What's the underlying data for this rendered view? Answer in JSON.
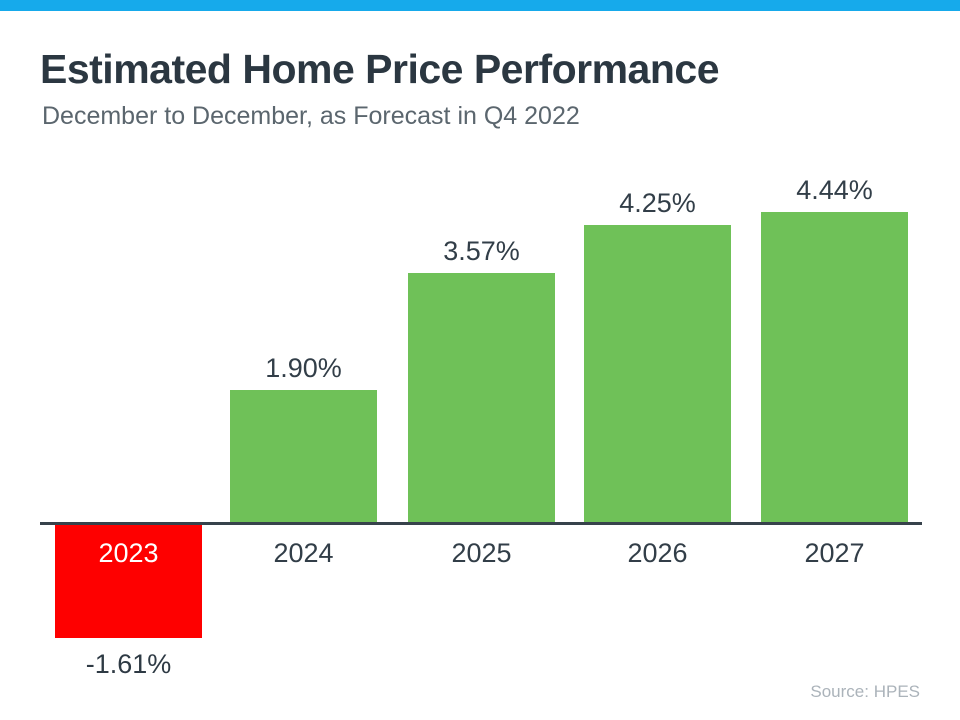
{
  "header": {
    "title": "Estimated Home Price Performance",
    "subtitle": "December to December, as Forecast in Q4 2022"
  },
  "footer": {
    "source": "Source: HPES"
  },
  "colors": {
    "top_bar": "#16aaeb",
    "positive_bar": "#6fc158",
    "negative_bar": "#fe0000",
    "axis": "#37424b",
    "title_text": "#2b3741",
    "subtitle_text": "#5b666e",
    "label_text": "#323e48",
    "source_text": "#abb3ba"
  },
  "chart_data": {
    "type": "bar",
    "title": "Estimated Home Price Performance",
    "subtitle": "December to December, as Forecast in Q4 2022",
    "categories": [
      "2023",
      "2024",
      "2025",
      "2026",
      "2027"
    ],
    "values": [
      -1.61,
      1.9,
      3.57,
      4.25,
      4.44
    ],
    "value_labels": [
      "-1.61%",
      "1.90%",
      "3.57%",
      "4.25%",
      "4.44%"
    ],
    "bar_colors": [
      "#fe0000",
      "#6fc158",
      "#6fc158",
      "#6fc158",
      "#6fc158"
    ],
    "xlabel": "",
    "ylabel": "",
    "ylim": [
      -2,
      5
    ],
    "grid": false,
    "legend": false,
    "annotations": [
      "negative 2023 bar rendered below baseline with category label inside bar in white"
    ]
  }
}
